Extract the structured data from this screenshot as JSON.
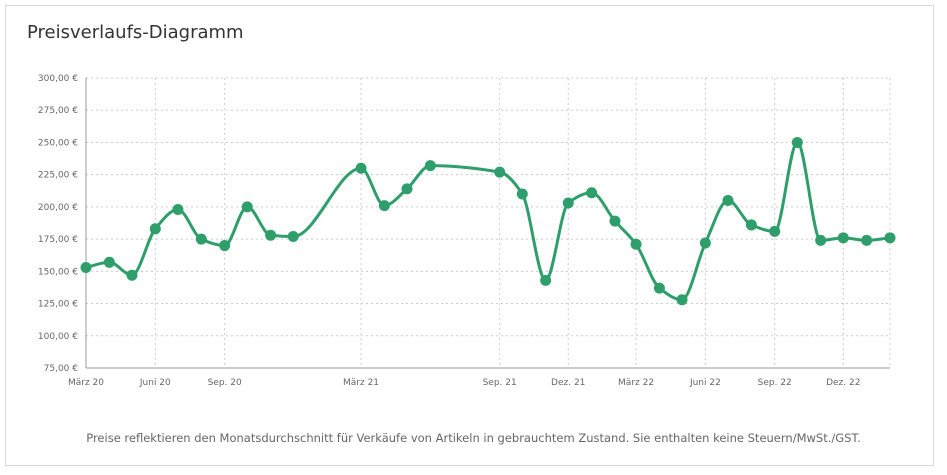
{
  "title": "Preisverlaufs-Diagramm",
  "footnote": "Preise reflektieren den Monatsdurchschnitt für Verkäufe von Artikeln in gebrauchtem Zustand. Sie enthalten keine Steuern/MwSt./GST.",
  "colors": {
    "line": "#2e9e6b",
    "grid": "#cccccc",
    "axis": "#999999"
  },
  "chart_data": {
    "type": "line",
    "title": "",
    "xlabel": "",
    "ylabel": "",
    "ylim": [
      75,
      300
    ],
    "yticks": [
      75,
      100,
      125,
      150,
      175,
      200,
      225,
      250,
      275,
      300
    ],
    "ytick_labels": [
      "75,00 €",
      "100,00 €",
      "125,00 €",
      "150,00 €",
      "175,00 €",
      "200,00 €",
      "225,00 €",
      "250,00 €",
      "275,00 €",
      "300,00 €"
    ],
    "xlim": [
      "2020-03-01",
      "2023-02-01"
    ],
    "xticks": [
      "2020-03-01",
      "2020-06-01",
      "2020-09-01",
      "2021-03-01",
      "2021-09-01",
      "2021-12-01",
      "2022-03-01",
      "2022-06-01",
      "2022-09-01",
      "2022-12-01"
    ],
    "xtick_labels": [
      "März 20",
      "Juni 20",
      "Sep. 20",
      "März 21",
      "Sep. 21",
      "Dez. 21",
      "März 22",
      "Juni 22",
      "Sep. 22",
      "Dez. 22"
    ],
    "grid": true,
    "series": [
      {
        "x": [
          "2020-03-01",
          "2020-04-01",
          "2020-05-01",
          "2020-06-01",
          "2020-07-01",
          "2020-08-01",
          "2020-09-01",
          "2020-10-01",
          "2020-11-01",
          "2020-12-01",
          "2021-03-01",
          "2021-04-01",
          "2021-05-01",
          "2021-06-01",
          "2021-09-01",
          "2021-10-01",
          "2021-11-01",
          "2021-12-01",
          "2022-01-01",
          "2022-02-01",
          "2022-03-01",
          "2022-04-01",
          "2022-05-01",
          "2022-06-01",
          "2022-07-01",
          "2022-08-01",
          "2022-09-01",
          "2022-10-01",
          "2022-11-01",
          "2022-12-01",
          "2023-01-01",
          "2023-02-01"
        ],
        "values": [
          153,
          157,
          147,
          183,
          198,
          175,
          170,
          200,
          178,
          177,
          230,
          201,
          214,
          232,
          227,
          210,
          143,
          203,
          211,
          189,
          171,
          137,
          128,
          172,
          205,
          186,
          181,
          250,
          174,
          176,
          174,
          176
        ]
      }
    ]
  }
}
